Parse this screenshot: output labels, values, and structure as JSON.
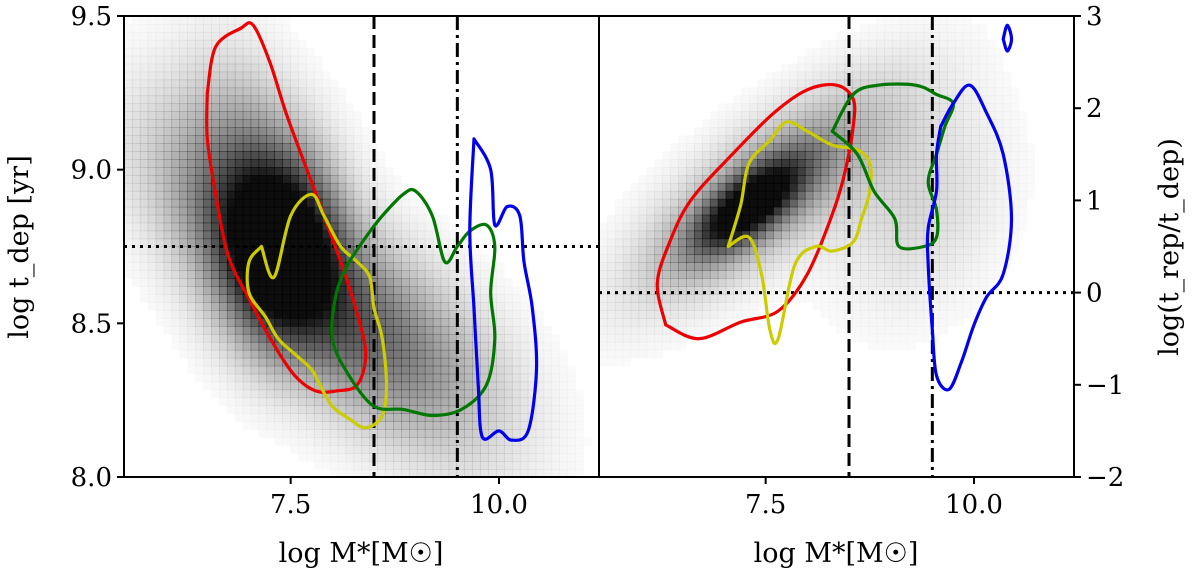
{
  "chart_data": [
    {
      "type": "density-contour",
      "panel": "left",
      "xlabel": "log M*[M☉]",
      "ylabel": "log t_dep [yr]",
      "xlim": [
        5.5,
        11.2
      ],
      "ylim": [
        8.0,
        9.5
      ],
      "x_ticks": [
        7.5,
        10.0
      ],
      "x_tick_labels": [
        "7.5",
        "10.0"
      ],
      "y_ticks": [
        8.0,
        8.5,
        9.0,
        9.5
      ],
      "y_tick_labels": [
        "8.0",
        "8.5",
        "9.0",
        "9.5"
      ],
      "reference_lines": {
        "vertical_dashed_x": 8.5,
        "vertical_dashdot_x": 9.5,
        "horizontal_dotted_y": 8.75
      },
      "density": [
        {
          "x": 7.4,
          "y": 8.75,
          "sx": 0.45,
          "sy": 0.2,
          "rho": 0,
          "w": 0.8
        },
        {
          "x": 7.7,
          "y": 8.62,
          "sx": 1.2,
          "sy": 0.32,
          "rho": -0.75,
          "w": 0.55
        },
        {
          "x": 7.0,
          "y": 8.95,
          "sx": 0.55,
          "sy": 0.28,
          "rho": -0.3,
          "w": 0.35
        },
        {
          "x": 9.0,
          "y": 8.45,
          "sx": 0.9,
          "sy": 0.22,
          "rho": -0.5,
          "w": 0.18
        }
      ],
      "series": [
        {
          "color": "#ee0000",
          "points": [
            [
              6.5,
              9.25
            ],
            [
              6.6,
              9.4
            ],
            [
              6.9,
              9.46
            ],
            [
              7.05,
              9.47
            ],
            [
              7.25,
              9.35
            ],
            [
              7.45,
              9.18
            ],
            [
              7.75,
              8.96
            ],
            [
              8.1,
              8.7
            ],
            [
              8.3,
              8.53
            ],
            [
              8.4,
              8.4
            ],
            [
              8.3,
              8.3
            ],
            [
              8.05,
              8.28
            ],
            [
              7.8,
              8.28
            ],
            [
              7.55,
              8.33
            ],
            [
              7.3,
              8.43
            ],
            [
              7.0,
              8.58
            ],
            [
              6.75,
              8.72
            ],
            [
              6.6,
              8.92
            ],
            [
              6.5,
              9.1
            ],
            [
              6.5,
              9.25
            ]
          ]
        },
        {
          "color": "#cccc00",
          "points": [
            [
              7.15,
              8.75
            ],
            [
              7.3,
              8.65
            ],
            [
              7.5,
              8.85
            ],
            [
              7.75,
              8.92
            ],
            [
              7.9,
              8.85
            ],
            [
              8.1,
              8.75
            ],
            [
              8.3,
              8.7
            ],
            [
              8.45,
              8.65
            ],
            [
              8.5,
              8.55
            ],
            [
              8.6,
              8.45
            ],
            [
              8.65,
              8.3
            ],
            [
              8.6,
              8.2
            ],
            [
              8.4,
              8.16
            ],
            [
              8.2,
              8.19
            ],
            [
              8.0,
              8.23
            ],
            [
              7.85,
              8.3
            ],
            [
              7.75,
              8.35
            ],
            [
              7.55,
              8.4
            ],
            [
              7.35,
              8.45
            ],
            [
              7.2,
              8.52
            ],
            [
              7.0,
              8.6
            ],
            [
              7.0,
              8.7
            ],
            [
              7.15,
              8.75
            ]
          ]
        },
        {
          "color": "#007700",
          "points": [
            [
              8.2,
              8.7
            ],
            [
              8.4,
              8.78
            ],
            [
              8.6,
              8.85
            ],
            [
              8.85,
              8.92
            ],
            [
              9.0,
              8.93
            ],
            [
              9.2,
              8.85
            ],
            [
              9.35,
              8.7
            ],
            [
              9.5,
              8.75
            ],
            [
              9.65,
              8.8
            ],
            [
              9.85,
              8.82
            ],
            [
              9.95,
              8.75
            ],
            [
              9.9,
              8.6
            ],
            [
              9.95,
              8.45
            ],
            [
              9.85,
              8.3
            ],
            [
              9.55,
              8.22
            ],
            [
              9.2,
              8.2
            ],
            [
              8.85,
              8.22
            ],
            [
              8.5,
              8.23
            ],
            [
              8.2,
              8.33
            ],
            [
              8.0,
              8.45
            ],
            [
              8.05,
              8.6
            ],
            [
              8.2,
              8.7
            ]
          ]
        },
        {
          "color": "#0000ee",
          "points": [
            [
              9.7,
              9.1
            ],
            [
              9.9,
              9.0
            ],
            [
              9.95,
              8.82
            ],
            [
              10.1,
              8.88
            ],
            [
              10.25,
              8.85
            ],
            [
              10.3,
              8.7
            ],
            [
              10.4,
              8.55
            ],
            [
              10.45,
              8.35
            ],
            [
              10.35,
              8.15
            ],
            [
              10.15,
              8.12
            ],
            [
              10.0,
              8.15
            ],
            [
              9.8,
              8.13
            ],
            [
              9.75,
              8.3
            ],
            [
              9.7,
              8.55
            ],
            [
              9.65,
              8.8
            ],
            [
              9.7,
              9.1
            ]
          ]
        }
      ]
    },
    {
      "type": "density-contour",
      "panel": "right",
      "xlabel": "log M*[M☉]",
      "ylabel": "log(t_rep/t_dep)",
      "xlim": [
        5.5,
        11.2
      ],
      "ylim": [
        -2,
        3
      ],
      "x_ticks": [
        7.5,
        10.0
      ],
      "x_tick_labels": [
        "7.5",
        "10.0"
      ],
      "y_ticks": [
        -2,
        -1,
        0,
        1,
        2,
        3
      ],
      "y_tick_labels": [
        "−2",
        "−1",
        "0",
        "1",
        "2",
        "3"
      ],
      "reference_lines": {
        "vertical_dashed_x": 8.5,
        "vertical_dashdot_x": 9.5,
        "horizontal_dotted_y": 0
      },
      "density": [
        {
          "x": 7.3,
          "y": 0.95,
          "sx": 0.45,
          "sy": 0.35,
          "rho": 0.7,
          "w": 0.85
        },
        {
          "x": 7.5,
          "y": 1.1,
          "sx": 1.0,
          "sy": 0.75,
          "rho": 0.75,
          "w": 0.45
        },
        {
          "x": 9.3,
          "y": 1.0,
          "sx": 0.7,
          "sy": 0.8,
          "rho": 0.2,
          "w": 0.15
        }
      ],
      "series": [
        {
          "color": "#ee0000",
          "points": [
            [
              6.3,
              -0.35
            ],
            [
              6.7,
              -0.5
            ],
            [
              7.2,
              -0.32
            ],
            [
              7.65,
              -0.2
            ],
            [
              8.0,
              0.2
            ],
            [
              8.3,
              0.85
            ],
            [
              8.45,
              1.3
            ],
            [
              8.55,
              1.8
            ],
            [
              8.55,
              2.1
            ],
            [
              8.35,
              2.25
            ],
            [
              8.0,
              2.2
            ],
            [
              7.6,
              1.95
            ],
            [
              7.1,
              1.5
            ],
            [
              6.6,
              1.0
            ],
            [
              6.35,
              0.55
            ],
            [
              6.2,
              0.1
            ],
            [
              6.3,
              -0.35
            ]
          ]
        },
        {
          "color": "#cccc00",
          "points": [
            [
              7.05,
              0.5
            ],
            [
              7.2,
              0.95
            ],
            [
              7.3,
              1.4
            ],
            [
              7.55,
              1.65
            ],
            [
              7.75,
              1.85
            ],
            [
              8.0,
              1.75
            ],
            [
              8.3,
              1.6
            ],
            [
              8.6,
              1.55
            ],
            [
              8.75,
              1.4
            ],
            [
              8.75,
              1.1
            ],
            [
              8.65,
              0.8
            ],
            [
              8.55,
              0.55
            ],
            [
              8.3,
              0.45
            ],
            [
              8.1,
              0.5
            ],
            [
              7.85,
              0.3
            ],
            [
              7.65,
              -0.5
            ],
            [
              7.55,
              -0.4
            ],
            [
              7.45,
              0.2
            ],
            [
              7.3,
              0.6
            ],
            [
              7.05,
              0.5
            ]
          ]
        },
        {
          "color": "#007700",
          "points": [
            [
              8.3,
              1.75
            ],
            [
              8.55,
              2.15
            ],
            [
              8.85,
              2.25
            ],
            [
              9.3,
              2.25
            ],
            [
              9.55,
              2.15
            ],
            [
              9.75,
              2.05
            ],
            [
              9.65,
              1.8
            ],
            [
              9.55,
              1.5
            ],
            [
              9.45,
              1.2
            ],
            [
              9.55,
              0.9
            ],
            [
              9.55,
              0.6
            ],
            [
              9.4,
              0.5
            ],
            [
              9.1,
              0.5
            ],
            [
              9.05,
              0.8
            ],
            [
              8.8,
              1.1
            ],
            [
              8.6,
              1.5
            ],
            [
              8.3,
              1.75
            ]
          ]
        },
        {
          "color": "#0000ee",
          "points": [
            [
              9.6,
              1.8
            ],
            [
              9.75,
              2.05
            ],
            [
              9.95,
              2.25
            ],
            [
              10.15,
              1.95
            ],
            [
              10.35,
              1.5
            ],
            [
              10.45,
              0.8
            ],
            [
              10.35,
              0.2
            ],
            [
              10.15,
              -0.05
            ],
            [
              10.0,
              -0.35
            ],
            [
              9.85,
              -0.75
            ],
            [
              9.7,
              -1.05
            ],
            [
              9.55,
              -0.9
            ],
            [
              9.5,
              -0.4
            ],
            [
              9.45,
              0.3
            ],
            [
              9.45,
              0.7
            ],
            [
              9.55,
              1.1
            ],
            [
              9.55,
              1.5
            ],
            [
              9.6,
              1.8
            ]
          ]
        },
        {
          "color": "#0000ee",
          "points": [
            [
              10.35,
              2.75
            ],
            [
              10.4,
              2.9
            ],
            [
              10.45,
              2.75
            ],
            [
              10.4,
              2.62
            ],
            [
              10.35,
              2.75
            ]
          ]
        }
      ]
    }
  ]
}
